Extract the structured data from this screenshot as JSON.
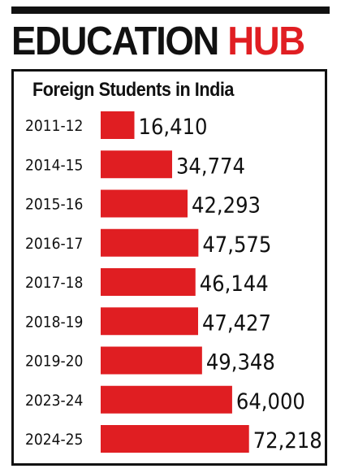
{
  "header": {
    "title_part1": "EDUCATION",
    "title_part2": "HUB"
  },
  "colors": {
    "bar": "#e01e22",
    "text": "#111111",
    "accent": "#e01e22"
  },
  "chart_data": {
    "type": "bar",
    "orientation": "horizontal",
    "title": "Foreign Students in India",
    "categories": [
      "2011-12",
      "2014-15",
      "2015-16",
      "2016-17",
      "2017-18",
      "2018-19",
      "2019-20",
      "2023-24",
      "2024-25"
    ],
    "values": [
      16410,
      34774,
      42293,
      47575,
      46144,
      47427,
      49348,
      64000,
      72218
    ],
    "value_labels": [
      "16,410",
      "34,774",
      "42,293",
      "47,575",
      "46,144",
      "47,427",
      "49,348",
      "64,000",
      "72,218"
    ],
    "grid": false,
    "legend": "none"
  }
}
